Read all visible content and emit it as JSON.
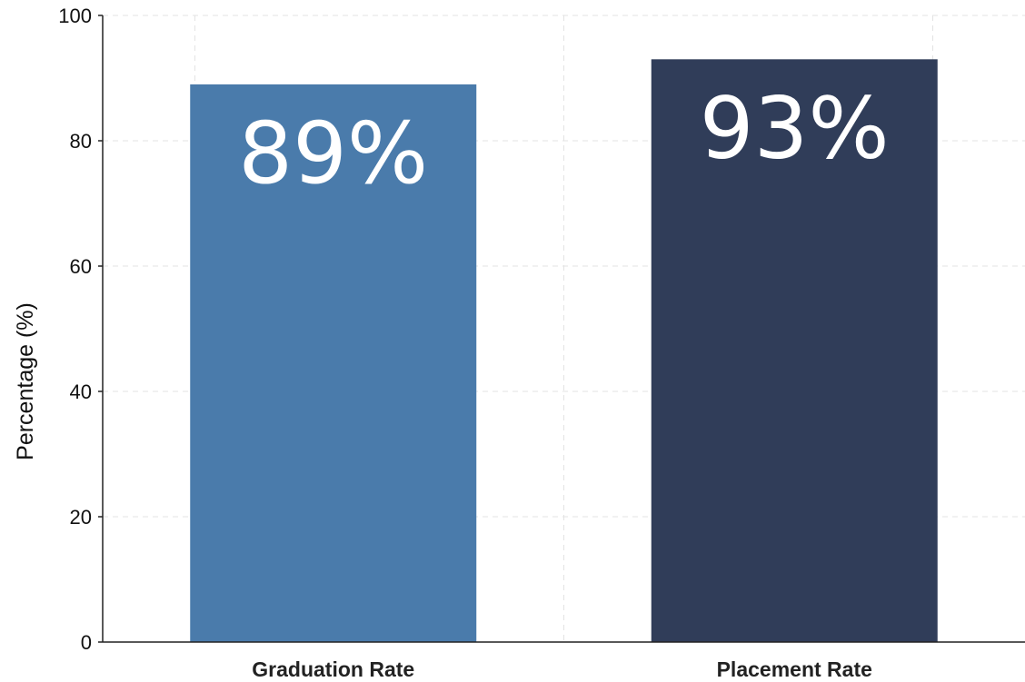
{
  "chart_data": {
    "type": "bar",
    "categories": [
      "Graduation Rate",
      "Placement Rate"
    ],
    "values": [
      89,
      93
    ],
    "data_labels": [
      "89%",
      "93%"
    ],
    "bar_colors": [
      "#4a7bab",
      "#303d59"
    ],
    "title": "",
    "xlabel": "",
    "ylabel": "Percentage (%)",
    "ylim": [
      0,
      100
    ],
    "yticks": [
      0,
      20,
      40,
      60,
      80,
      100
    ],
    "grid": true,
    "legend": "none"
  }
}
